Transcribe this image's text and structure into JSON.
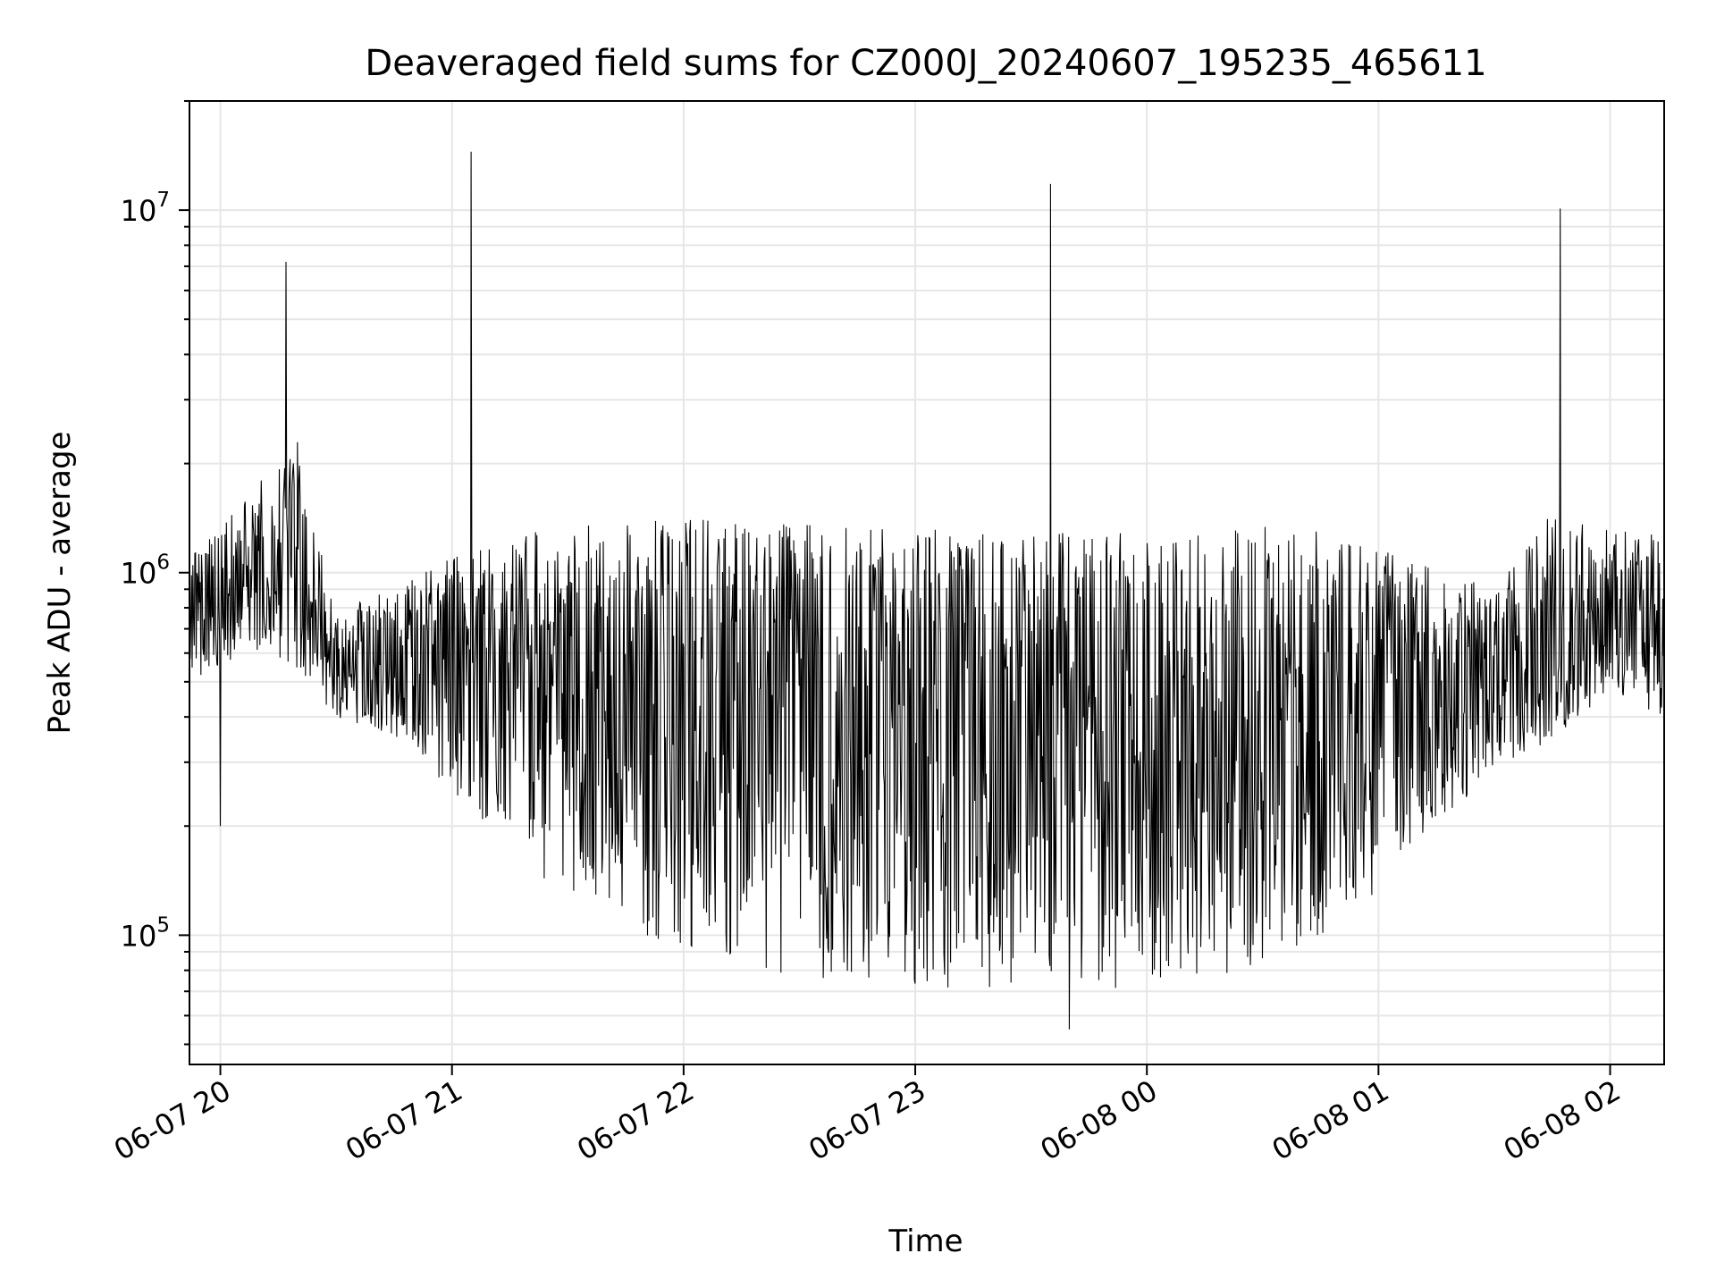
{
  "chart_data": {
    "type": "line",
    "title": "Deaveraged field sums for CZ000J_20240607_195235_465611",
    "xlabel": "Time",
    "ylabel": "Peak ADU - average",
    "yscale": "log",
    "ylim": [
      44000,
      20000000
    ],
    "xlim": [
      "2024-06-07 19:52",
      "2024-06-08 02:14"
    ],
    "grid": true,
    "line_color": "#000000",
    "x_ticks": [
      {
        "value": "2024-06-07 20:00",
        "label": "06-07 20"
      },
      {
        "value": "2024-06-07 21:00",
        "label": "06-07 21"
      },
      {
        "value": "2024-06-07 22:00",
        "label": "06-07 22"
      },
      {
        "value": "2024-06-07 23:00",
        "label": "06-07 23"
      },
      {
        "value": "2024-06-08 00:00",
        "label": "06-08 00"
      },
      {
        "value": "2024-06-08 01:00",
        "label": "06-08 01"
      },
      {
        "value": "2024-06-08 02:00",
        "label": "06-08 02"
      }
    ],
    "y_ticks": [
      {
        "value": 100000,
        "base": "10",
        "exp": "5"
      },
      {
        "value": 1000000,
        "base": "10",
        "exp": "6"
      },
      {
        "value": 10000000,
        "base": "10",
        "exp": "7"
      }
    ],
    "envelope": [
      {
        "t": "2024-06-07 19:52",
        "median": 800000,
        "low": 500000,
        "high": 1100000
      },
      {
        "t": "2024-06-07 20:10",
        "median": 950000,
        "low": 600000,
        "high": 1800000
      },
      {
        "t": "2024-06-07 20:20",
        "median": 1100000,
        "low": 500000,
        "high": 2300000
      },
      {
        "t": "2024-06-07 20:30",
        "median": 600000,
        "low": 400000,
        "high": 800000
      },
      {
        "t": "2024-06-07 20:45",
        "median": 600000,
        "low": 350000,
        "high": 900000
      },
      {
        "t": "2024-06-07 21:00",
        "median": 600000,
        "low": 250000,
        "high": 1100000
      },
      {
        "t": "2024-06-07 21:20",
        "median": 550000,
        "low": 150000,
        "high": 1300000
      },
      {
        "t": "2024-06-07 21:50",
        "median": 450000,
        "low": 100000,
        "high": 1400000
      },
      {
        "t": "2024-06-07 22:30",
        "median": 400000,
        "low": 75000,
        "high": 1400000
      },
      {
        "t": "2024-06-07 23:00",
        "median": 380000,
        "low": 72000,
        "high": 1350000
      },
      {
        "t": "2024-06-07 23:30",
        "median": 350000,
        "low": 70000,
        "high": 1300000
      },
      {
        "t": "2024-06-08 00:00",
        "median": 350000,
        "low": 70000,
        "high": 1300000
      },
      {
        "t": "2024-06-08 00:30",
        "median": 380000,
        "low": 80000,
        "high": 1350000
      },
      {
        "t": "2024-06-08 00:50",
        "median": 420000,
        "low": 100000,
        "high": 1300000
      },
      {
        "t": "2024-06-08 01:10",
        "median": 480000,
        "low": 180000,
        "high": 1100000
      },
      {
        "t": "2024-06-08 01:30",
        "median": 520000,
        "low": 280000,
        "high": 900000
      },
      {
        "t": "2024-06-08 01:45",
        "median": 600000,
        "low": 350000,
        "high": 1500000
      },
      {
        "t": "2024-06-08 02:00",
        "median": 700000,
        "low": 450000,
        "high": 1300000
      },
      {
        "t": "2024-06-08 02:14",
        "median": 700000,
        "low": 400000,
        "high": 1300000
      }
    ],
    "spikes": [
      {
        "t": "2024-06-07 20:17",
        "value": 7200000
      },
      {
        "t": "2024-06-07 21:05",
        "value": 14500000
      },
      {
        "t": "2024-06-07 23:35",
        "value": 11800000
      },
      {
        "t": "2024-06-08 01:47",
        "value": 10100000
      },
      {
        "t": "2024-06-07 20:00",
        "value": 200000
      },
      {
        "t": "2024-06-07 23:40",
        "value": 55000
      }
    ],
    "samples": 2200
  }
}
